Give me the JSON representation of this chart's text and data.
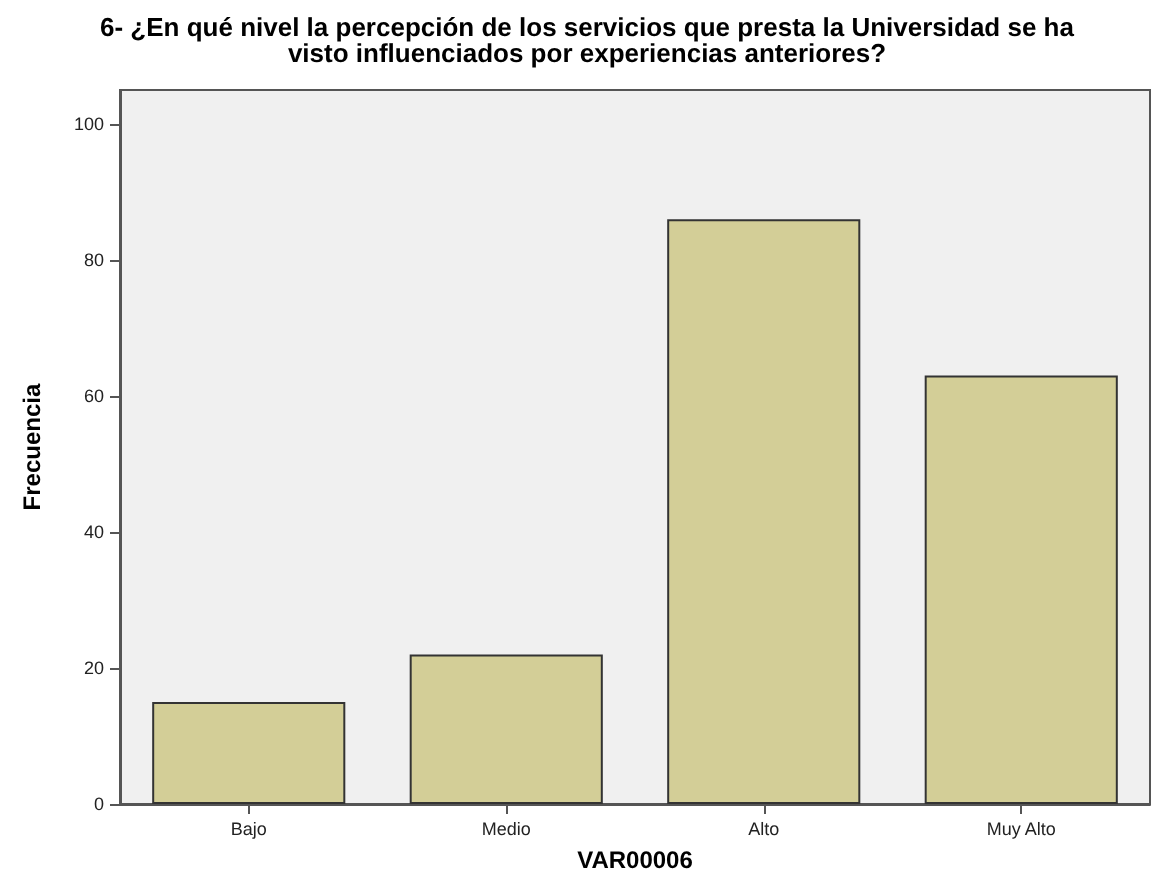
{
  "chart_data": {
    "type": "bar",
    "title": "6- ¿En qué nivel la percepción de los servicios que presta la Universidad se ha\nvisto influenciados por experiencias anteriores?",
    "xlabel": "VAR00006",
    "ylabel": "Frecuencia",
    "categories": [
      "Bajo",
      "Medio",
      "Alto",
      "Muy Alto"
    ],
    "values": [
      15,
      22,
      86,
      63
    ],
    "color": "#d3ce97",
    "ylim": [
      0,
      105
    ],
    "yticks": [
      0,
      20,
      40,
      60,
      80,
      100
    ],
    "grid": false
  }
}
